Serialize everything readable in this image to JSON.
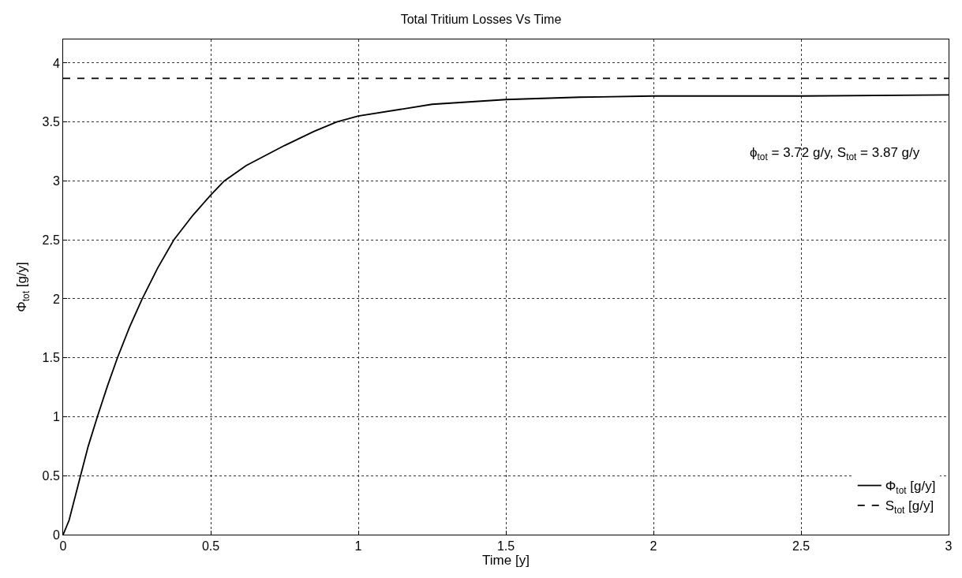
{
  "chart_data": {
    "type": "line",
    "title": "Total Tritium Losses Vs Time",
    "xlabel": "Time [y]",
    "ylabel": "Φ$_{tot}$ [g/y]",
    "series": [
      {
        "name": "Φ$_{tot}$ [g/y]",
        "color": "#000000",
        "line_style": "solid",
        "x": [
          0,
          0.02,
          0.059,
          0.085,
          0.116,
          0.15,
          0.184,
          0.225,
          0.268,
          0.32,
          0.375,
          0.44,
          0.5,
          0.546,
          0.62,
          0.75,
          0.85,
          0.927,
          1,
          1.25,
          1.5,
          1.75,
          2,
          2.5,
          3
        ],
        "values": [
          0,
          0.12,
          0.5,
          0.75,
          1,
          1.26,
          1.5,
          1.76,
          2,
          2.26,
          2.5,
          2.71,
          2.88,
          3,
          3.13,
          3.3,
          3.42,
          3.5,
          3.55,
          3.65,
          3.69,
          3.71,
          3.72,
          3.72,
          3.73
        ]
      },
      {
        "name": "S$_{tot}$ [g/y]",
        "color": "#000000",
        "line_style": "dashed",
        "x": [
          0,
          3
        ],
        "values": [
          3.87,
          3.87
        ]
      }
    ],
    "annotations": [
      "ϕ$_{tot}$ = 3.72 g/y, S$_{tot}$ = 3.87 g/y"
    ],
    "xlim": [
      0,
      3
    ],
    "xticks": [
      0,
      0.5,
      1,
      1.5,
      2,
      2.5,
      3
    ],
    "ylim": [
      0,
      4.2
    ],
    "yticks": [
      0,
      0.5,
      1,
      1.5,
      2,
      2.5,
      3,
      3.5,
      4
    ],
    "grid": true,
    "legend": "bottom right",
    "marker": "none"
  }
}
